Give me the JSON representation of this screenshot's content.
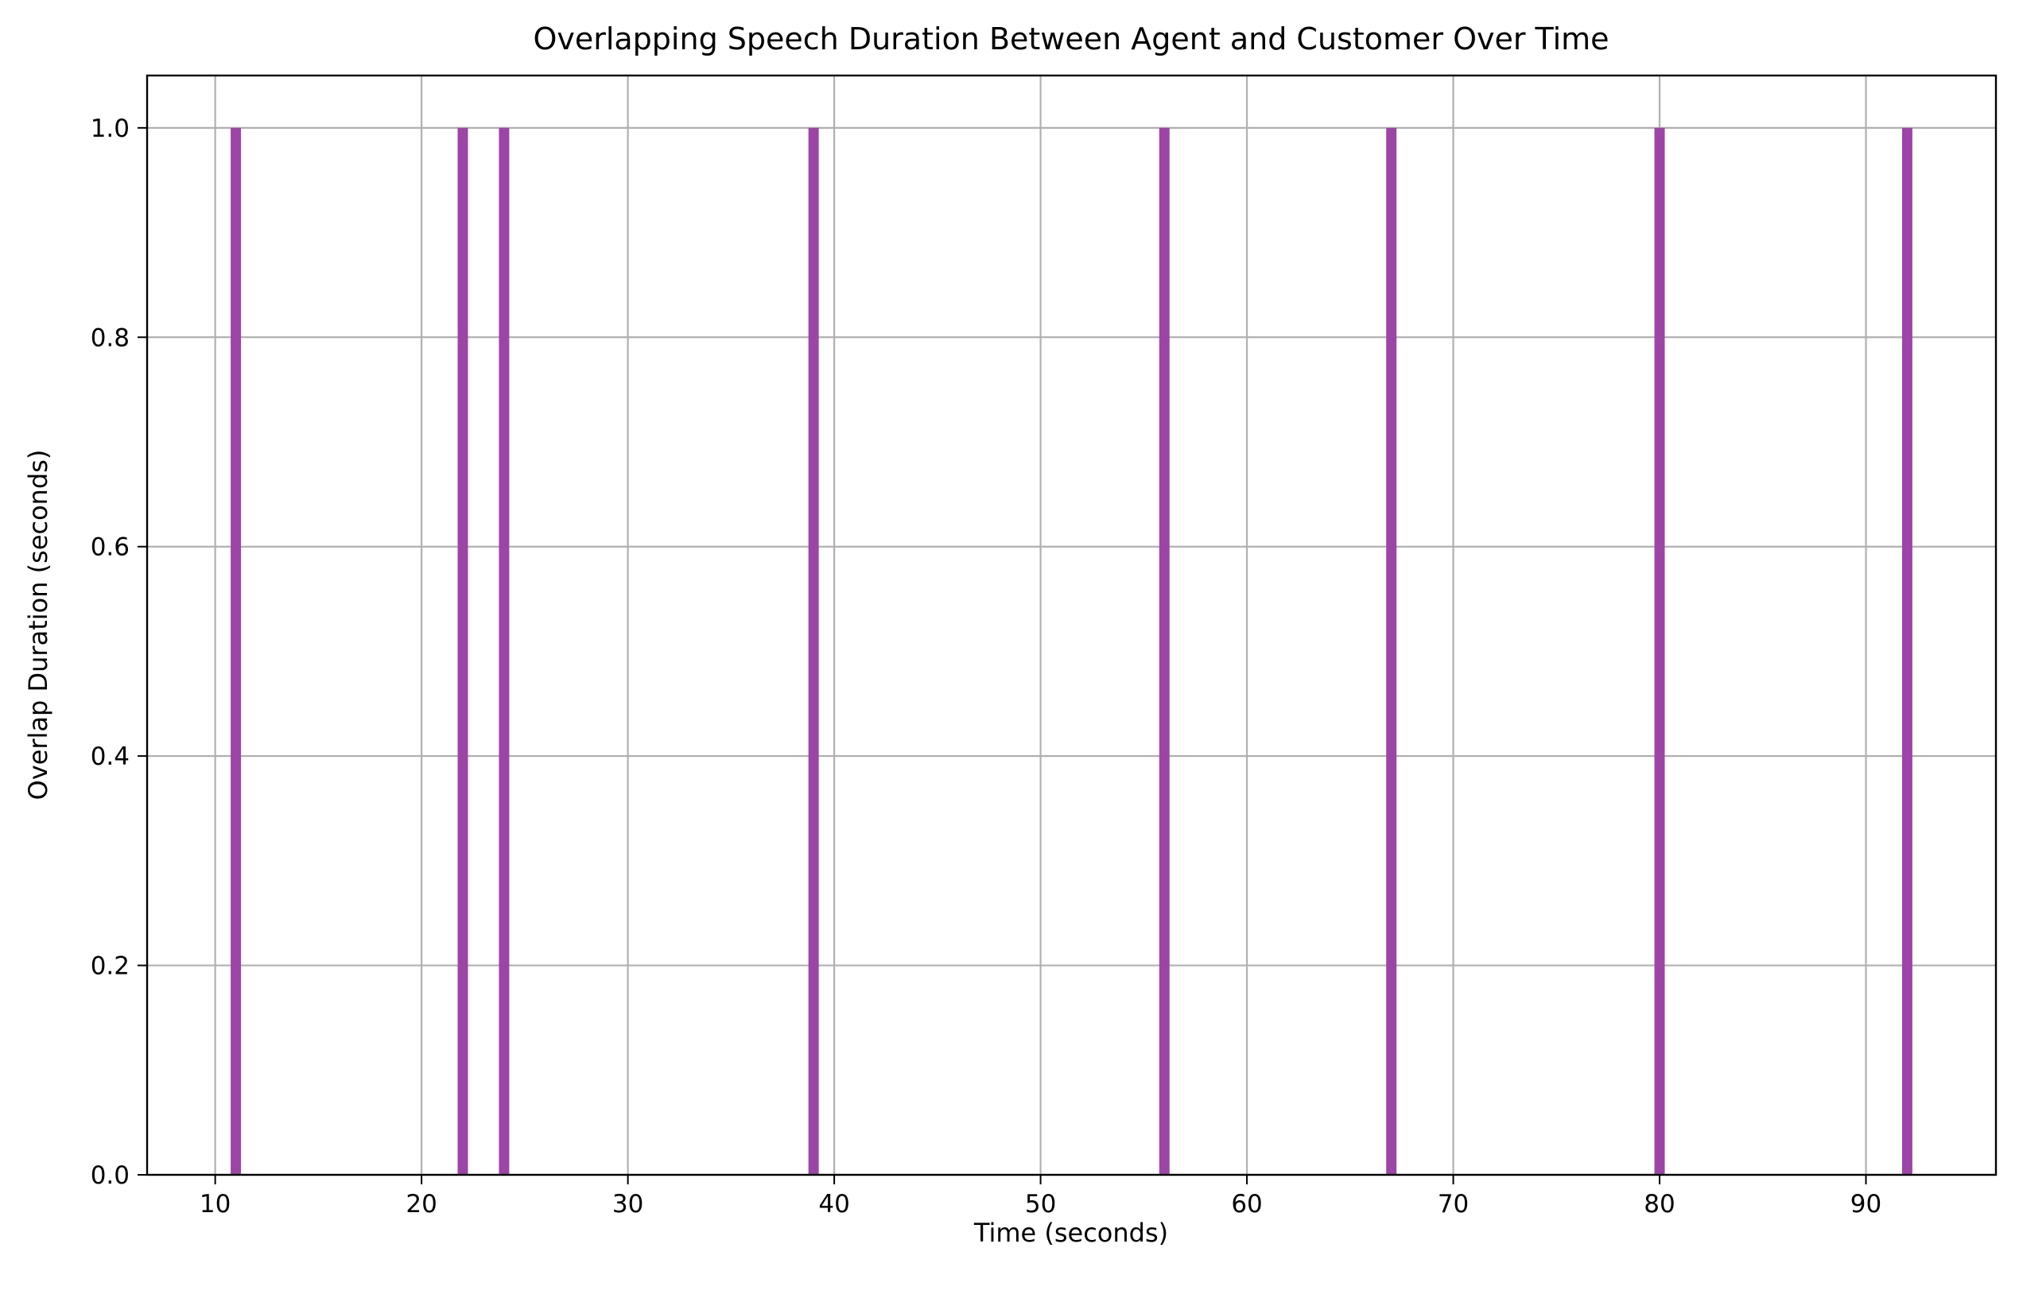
{
  "chart_data": {
    "type": "bar",
    "title": "Overlapping Speech Duration Between Agent and Customer Over Time",
    "xlabel": "Time (seconds)",
    "ylabel": "Overlap Duration (seconds)",
    "x": [
      11,
      22,
      24,
      39,
      56,
      67,
      80,
      92
    ],
    "values": [
      1,
      1,
      1,
      1,
      1,
      1,
      1,
      1
    ],
    "bar_width": 0.5,
    "xlim": [
      6.7,
      96.3
    ],
    "ylim": [
      0,
      1.05
    ],
    "xticks": [
      10,
      20,
      30,
      40,
      50,
      60,
      70,
      80,
      90
    ],
    "xtick_labels": [
      "10",
      "20",
      "30",
      "40",
      "50",
      "60",
      "70",
      "80",
      "90"
    ],
    "yticks": [
      0,
      0.2,
      0.4,
      0.6,
      0.8,
      1.0
    ],
    "ytick_labels": [
      "0.0",
      "0.2",
      "0.4",
      "0.6",
      "0.8",
      "1.0"
    ],
    "grid": true,
    "legend": "none",
    "colors": {
      "bar": "#9c45a6",
      "grid": "#b0b0b0",
      "axis": "#000000"
    }
  }
}
